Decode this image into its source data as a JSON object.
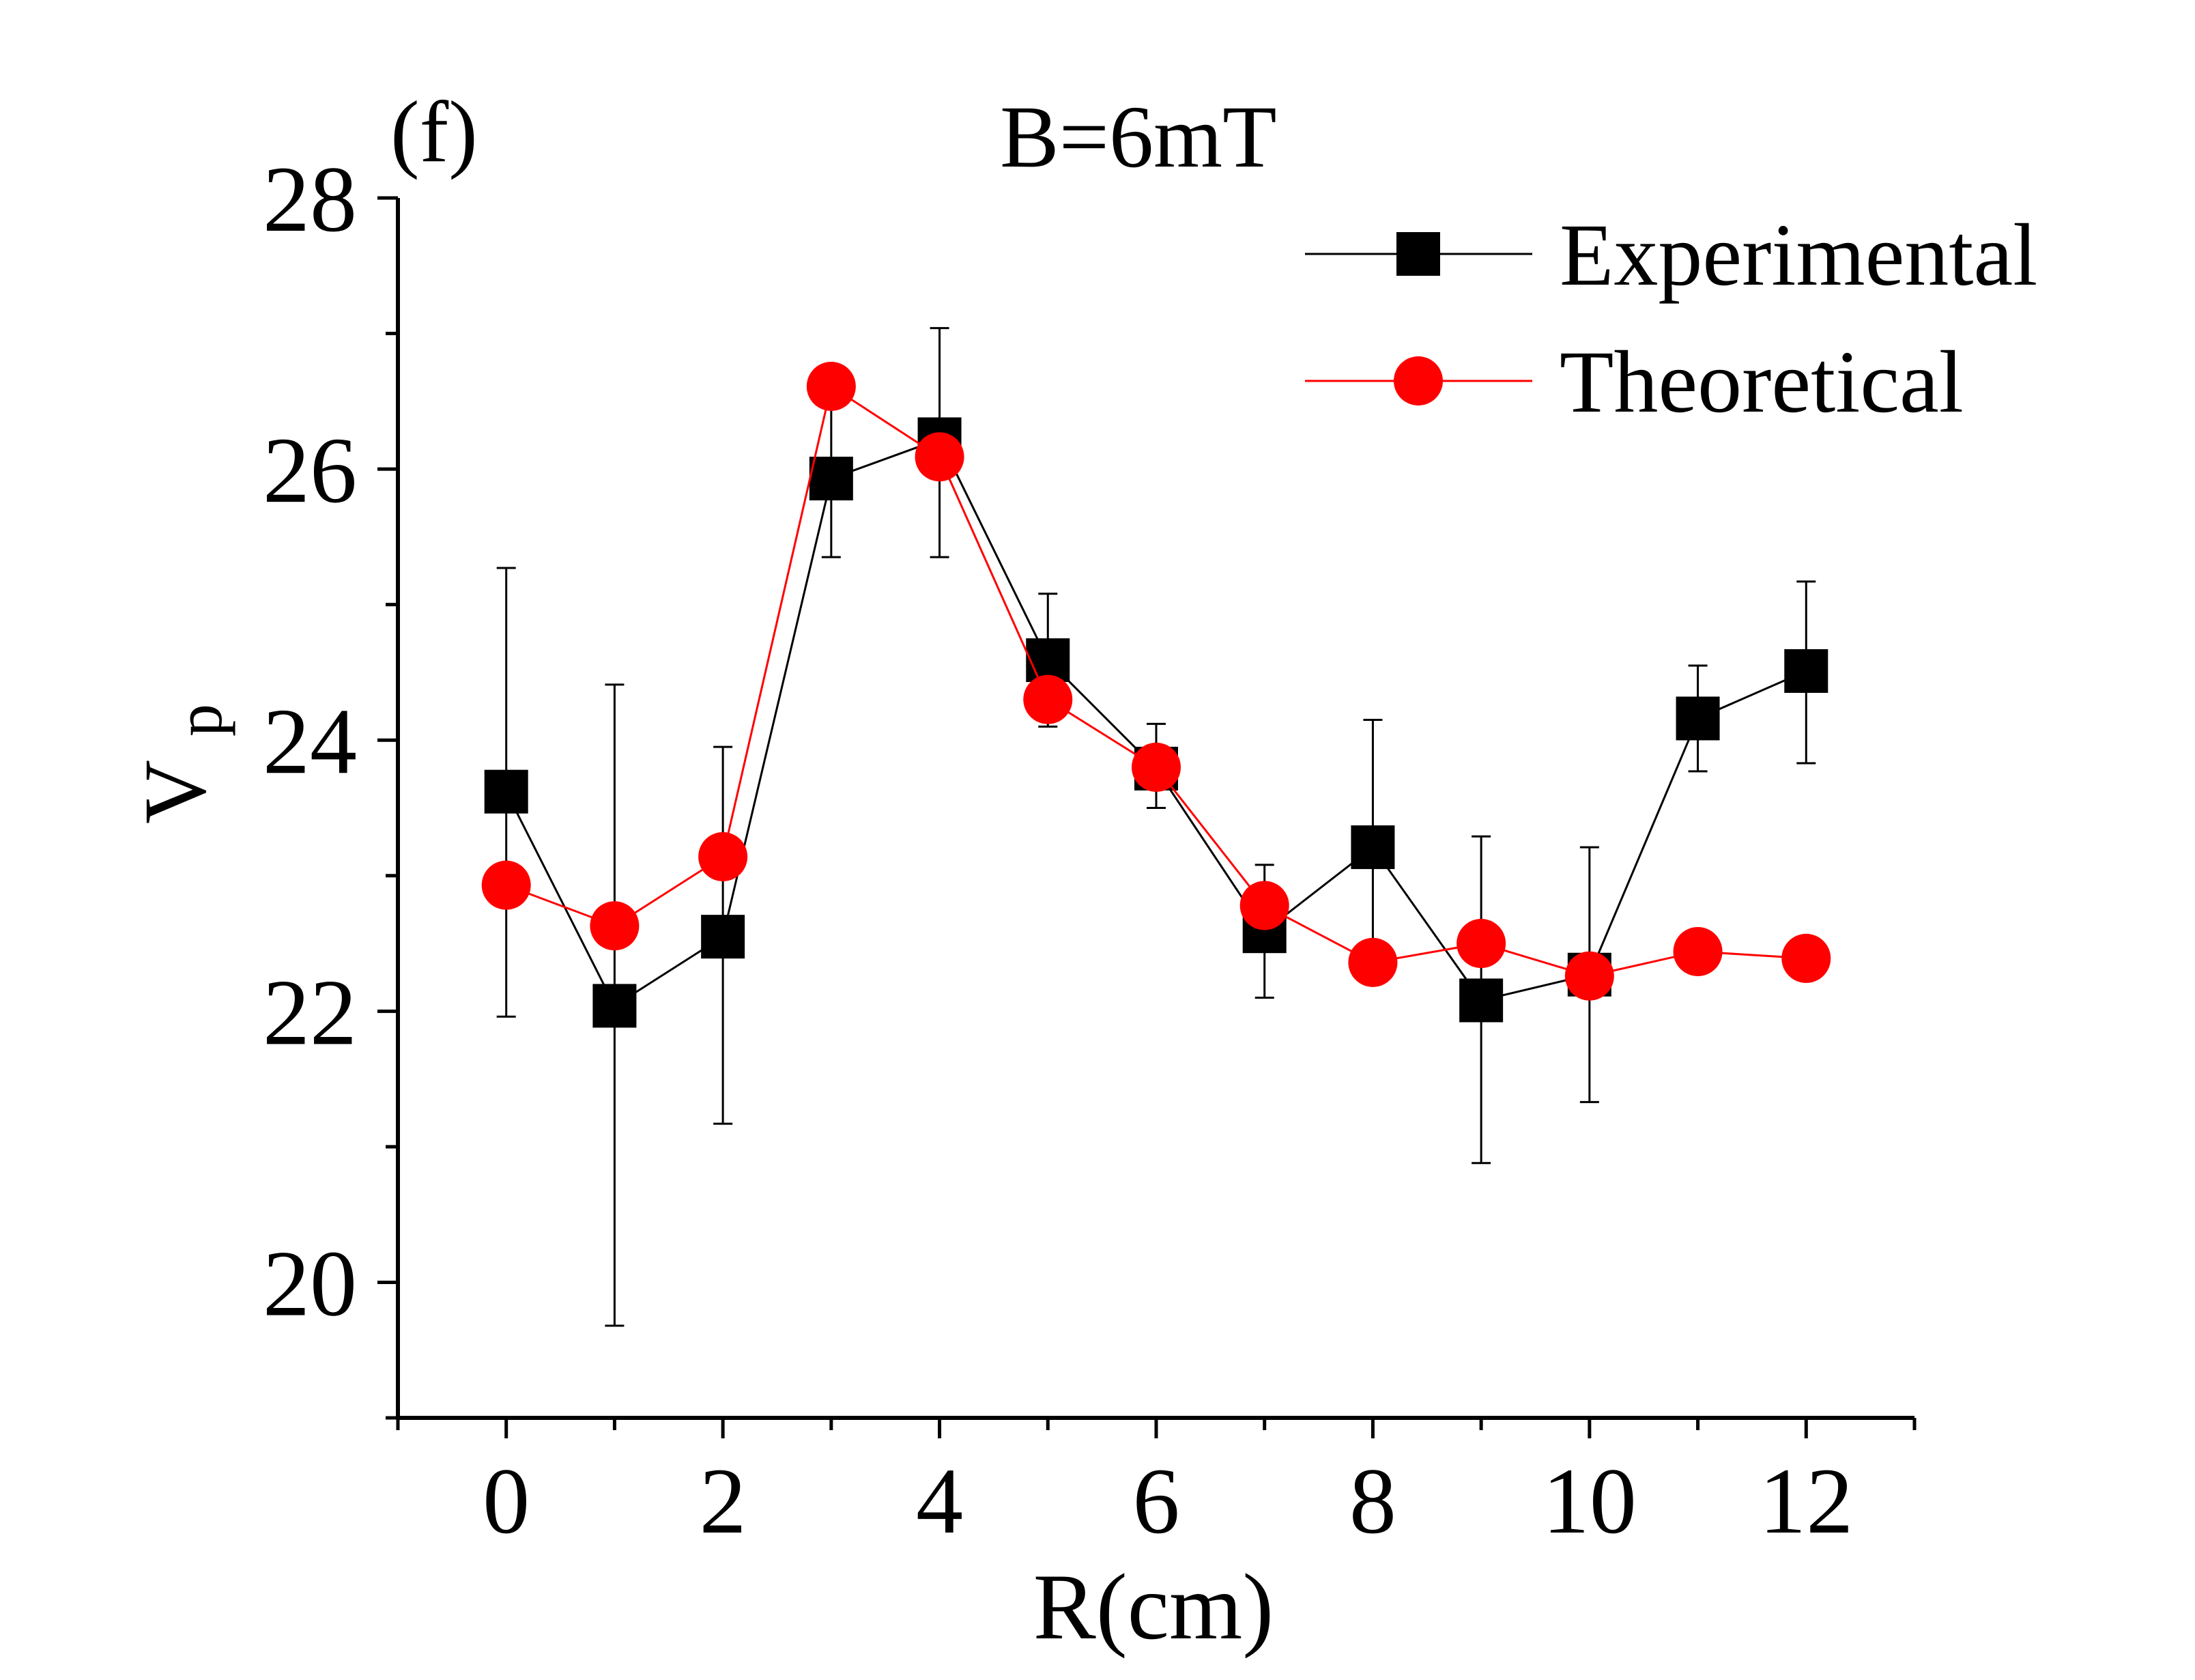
{
  "colors": {
    "experimental": "#000000",
    "theoretical": "#ff0000",
    "axis": "#000000"
  },
  "panel_label": "(f)",
  "chart_data": {
    "type": "line",
    "title": "B=6mT",
    "xlabel": "R(cm)",
    "ylabel": "V",
    "ylabel_subscript": "p",
    "xlim": [
      -1,
      13
    ],
    "ylim": [
      19,
      28
    ],
    "xticks": [
      0,
      2,
      4,
      6,
      8,
      10,
      12
    ],
    "xtick_labels": [
      "0",
      "2",
      "4",
      "6",
      "8",
      "10",
      "12"
    ],
    "yticks": [
      20,
      22,
      24,
      26,
      28
    ],
    "ytick_labels": [
      "20",
      "22",
      "24",
      "26",
      "28"
    ],
    "legend_position": "top-right",
    "series": [
      {
        "name": "Experimental",
        "marker": "square",
        "color": "#000000",
        "x": [
          0,
          1,
          2,
          3,
          4,
          5,
          6,
          7,
          8,
          9,
          10,
          11,
          12
        ],
        "y": [
          23.62,
          22.04,
          22.55,
          25.93,
          26.22,
          24.59,
          23.79,
          22.59,
          23.21,
          22.08,
          22.27,
          24.16,
          24.51
        ],
        "err_low": [
          21.96,
          19.68,
          21.17,
          25.35,
          25.35,
          24.1,
          23.5,
          22.1,
          22.3,
          20.88,
          21.33,
          23.77,
          23.83
        ],
        "err_high": [
          25.27,
          24.41,
          23.95,
          26.5,
          27.04,
          25.08,
          24.12,
          23.08,
          24.15,
          23.29,
          23.21,
          24.55,
          25.17
        ]
      },
      {
        "name": "Theoretical",
        "marker": "circle",
        "color": "#ff0000",
        "x": [
          0,
          1,
          2,
          3,
          4,
          5,
          6,
          7,
          8,
          9,
          10,
          11,
          12
        ],
        "y": [
          22.93,
          22.63,
          23.14,
          26.61,
          26.09,
          24.3,
          23.8,
          22.78,
          22.36,
          22.5,
          22.26,
          22.44,
          22.39
        ]
      }
    ]
  }
}
